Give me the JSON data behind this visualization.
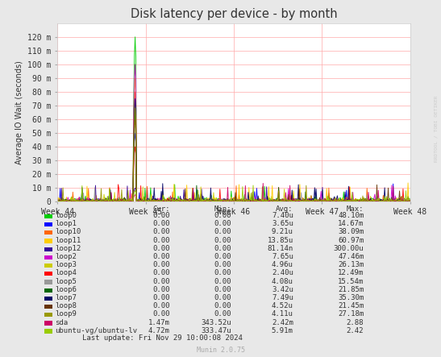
{
  "title": "Disk latency per device - by month",
  "ylabel": "Average IO Wait (seconds)",
  "xlabel_ticks": [
    "Week 44",
    "Week 45",
    "Week 46",
    "Week 47",
    "Week 48"
  ],
  "ylim": [
    0,
    130
  ],
  "ytick_labels": [
    "0",
    "10 m",
    "20 m",
    "30 m",
    "40 m",
    "50 m",
    "60 m",
    "70 m",
    "80 m",
    "90 m",
    "100 m",
    "110 m",
    "120 m"
  ],
  "ytick_values": [
    0,
    10,
    20,
    30,
    40,
    50,
    60,
    70,
    80,
    90,
    100,
    110,
    120
  ],
  "background_color": "#e8e8e8",
  "plot_background_color": "#ffffff",
  "grid_color": "#ffaaaa",
  "title_color": "#333333",
  "watermark": "RRDTOOL / TOBI OETIKER",
  "footer": "Munin 2.0.75",
  "last_update": "Last update: Fri Nov 29 10:00:08 2024",
  "legend_entries": [
    {
      "label": "loop0",
      "color": "#00cc00"
    },
    {
      "label": "loop1",
      "color": "#0000ff"
    },
    {
      "label": "loop10",
      "color": "#ff6600"
    },
    {
      "label": "loop11",
      "color": "#ffcc00"
    },
    {
      "label": "loop12",
      "color": "#330099"
    },
    {
      "label": "loop2",
      "color": "#cc00cc"
    },
    {
      "label": "loop3",
      "color": "#cccc00"
    },
    {
      "label": "loop4",
      "color": "#ff0000"
    },
    {
      "label": "loop5",
      "color": "#999999"
    },
    {
      "label": "loop6",
      "color": "#006600"
    },
    {
      "label": "loop7",
      "color": "#000066"
    },
    {
      "label": "loop8",
      "color": "#663300"
    },
    {
      "label": "loop9",
      "color": "#999900"
    },
    {
      "label": "sda",
      "color": "#cc0066"
    },
    {
      "label": "ubuntu-vg/ubuntu-lv",
      "color": "#99cc00"
    }
  ],
  "legend_cols": [
    {
      "header": "Cur:",
      "values": [
        "0.00",
        "0.00",
        "0.00",
        "0.00",
        "0.00",
        "0.00",
        "0.00",
        "0.00",
        "0.00",
        "0.00",
        "0.00",
        "0.00",
        "0.00",
        "1.47m",
        "4.72m"
      ]
    },
    {
      "header": "Min:",
      "values": [
        "0.00",
        "0.00",
        "0.00",
        "0.00",
        "0.00",
        "0.00",
        "0.00",
        "0.00",
        "0.00",
        "0.00",
        "0.00",
        "0.00",
        "0.00",
        "343.52u",
        "333.47u"
      ]
    },
    {
      "header": "Avg:",
      "values": [
        "7.40u",
        "3.65u",
        "9.21u",
        "13.85u",
        "81.14n",
        "7.65u",
        "4.96u",
        "2.40u",
        "4.08u",
        "3.42u",
        "7.49u",
        "4.52u",
        "4.11u",
        "2.42m",
        "5.91m"
      ]
    },
    {
      "header": "Max:",
      "values": [
        "48.10m",
        "14.67m",
        "38.09m",
        "60.97m",
        "300.00u",
        "47.46m",
        "26.13m",
        "12.49m",
        "15.54m",
        "21.85m",
        "35.30m",
        "21.45m",
        "27.18m",
        "2.88",
        "2.42"
      ]
    }
  ]
}
